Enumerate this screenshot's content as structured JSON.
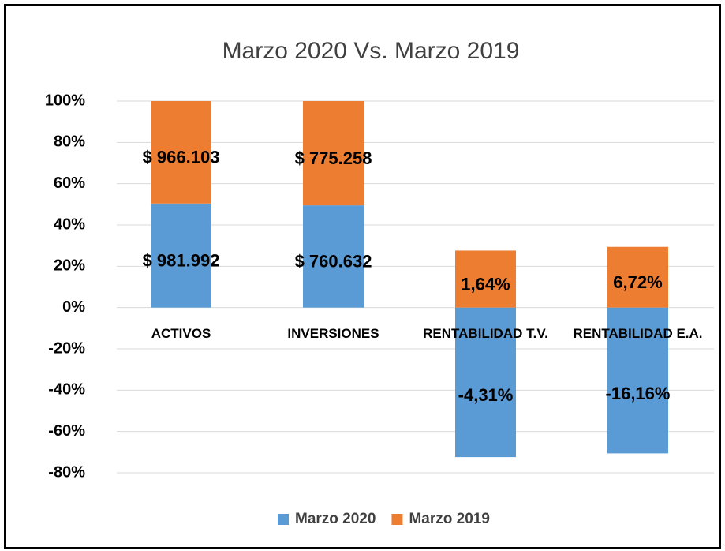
{
  "chart_data": {
    "type": "stacked_bar",
    "title": "Marzo 2020 Vs. Marzo 2019",
    "categories": [
      "ACTIVOS",
      "INVERSIONES",
      "RENTABILIDAD T.V.",
      "RENTABILIDAD E.A."
    ],
    "series": [
      {
        "name": "Marzo 2020",
        "color": "#5b9bd5",
        "values": [
          50.4,
          49.5,
          -72.4,
          -70.6
        ],
        "value_labels": [
          "$ 981.992",
          "$ 760.632",
          "-4,31%",
          "-16,16%"
        ]
      },
      {
        "name": "Marzo 2019",
        "color": "#ed7d31",
        "values": [
          49.6,
          50.5,
          27.6,
          29.4
        ],
        "value_labels": [
          "$ 966.103",
          "$ 775.258",
          "1,64%",
          "6,72%"
        ]
      }
    ],
    "ylim": [
      -80,
      100
    ],
    "yticks": [
      {
        "value": 100,
        "label": "100%"
      },
      {
        "value": 80,
        "label": "80%"
      },
      {
        "value": 60,
        "label": "60%"
      },
      {
        "value": 40,
        "label": "40%"
      },
      {
        "value": 20,
        "label": "20%"
      },
      {
        "value": 0,
        "label": "0%"
      },
      {
        "value": -20,
        "label": "-20%"
      },
      {
        "value": -40,
        "label": "-40%"
      },
      {
        "value": -60,
        "label": "-60%"
      },
      {
        "value": -80,
        "label": "-80%"
      }
    ],
    "grid": true,
    "legend": "bottom"
  }
}
